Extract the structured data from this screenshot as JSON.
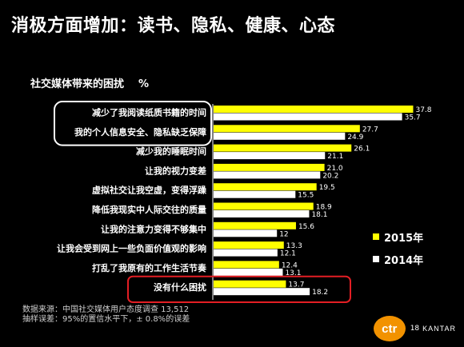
{
  "page": {
    "title": "消极方面增加：读书、隐私、健康、心态",
    "subtitle": "社交媒体带来的困扰",
    "unit": "%",
    "source_line1": "数据来源：中国社交媒体用户态度调查 13,512",
    "source_line2": "抽样误差：95%的置信水平下，± 0.8%的误差",
    "page_number": "18",
    "logo_text": "ctr",
    "brand_text": "KANTAR"
  },
  "colors": {
    "background": "#000000",
    "series_2015": "#ffff00",
    "series_2014": "#ffffff",
    "highlight_white": "#ffffff",
    "highlight_red": "#e31e24"
  },
  "chart_data": {
    "type": "bar",
    "orientation": "horizontal",
    "categories": [
      "减少了我阅读纸质书籍的时间",
      "我的个人信息安全、隐私缺乏保障",
      "减少我的睡眠时间",
      "让我的视力变差",
      "虚拟社交让我空虚，变得浮躁",
      "降低我现实中人际交往的质量",
      "让我的注意力变得不够集中",
      "让我会受到网上一些负面价值观的影响",
      "打乱了我原有的工作生活节奏",
      "没有什么困扰"
    ],
    "series": [
      {
        "name": "2015年",
        "values": [
          37.8,
          27.7,
          26.1,
          21.0,
          19.5,
          18.9,
          15.6,
          13.3,
          12.4,
          13.7
        ]
      },
      {
        "name": "2014年",
        "values": [
          35.7,
          24.9,
          21.1,
          20.2,
          15.5,
          18.1,
          12,
          12.1,
          13.1,
          18.2
        ]
      }
    ],
    "value_labels": [
      [
        "37.8",
        "35.7"
      ],
      [
        "27.7",
        "24.9"
      ],
      [
        "26.1",
        "21.1"
      ],
      [
        "21.0",
        "20.2"
      ],
      [
        "19.5",
        "15.5"
      ],
      [
        "18.9",
        "18.1"
      ],
      [
        "15.6",
        "12"
      ],
      [
        "13.3",
        "12.1"
      ],
      [
        "12.4",
        "13.1"
      ],
      [
        "13.7",
        "18.2"
      ]
    ],
    "xlim": [
      0,
      40
    ],
    "grid": false,
    "legend_position": "bottom-right",
    "highlight_white_categories": [
      0,
      1
    ],
    "highlight_red_categories": [
      9
    ]
  }
}
